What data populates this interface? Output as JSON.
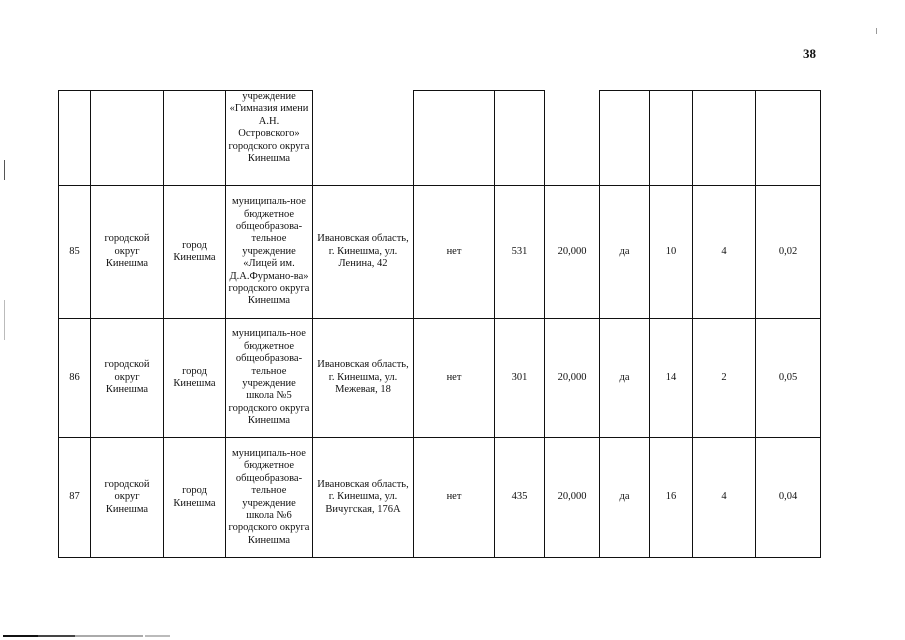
{
  "page_number": "38",
  "continuation_row": {
    "name": "учреждение «Гимназия имени А.Н. Островского» городского округа Кинешма"
  },
  "rows": [
    {
      "num": "85",
      "district": "городской округ Кинешма",
      "settlement": "город Кинешма",
      "name": "муниципаль-ное бюджетное общеобразова-тельное учреждение «Лицей им. Д.А.Фурмано-ва» городского округа Кинешма",
      "address": "Ивановская область, г. Кинешма, ул. Ленина, 42",
      "flag1": "нет",
      "count": "531",
      "value": "20,000",
      "flag2": "да",
      "n1": "10",
      "n2": "4",
      "ratio": "0,02"
    },
    {
      "num": "86",
      "district": "городской округ Кинешма",
      "settlement": "город Кинешма",
      "name": "муниципаль-ное бюджетное общеобразова-тельное учреждение школа №5 городского округа Кинешма",
      "address": "Ивановская область, г. Кинешма, ул. Межевая, 18",
      "flag1": "нет",
      "count": "301",
      "value": "20,000",
      "flag2": "да",
      "n1": "14",
      "n2": "2",
      "ratio": "0,05"
    },
    {
      "num": "87",
      "district": "городской округ Кинешма",
      "settlement": "город Кинешма",
      "name": "муниципаль-ное бюджетное общеобразова-тельное учреждение школа №6 городского округа Кинешма",
      "address": "Ивановская область, г. Кинешма, ул. Вичугская, 176А",
      "flag1": "нет",
      "count": "435",
      "value": "20,000",
      "flag2": "да",
      "n1": "16",
      "n2": "4",
      "ratio": "0,04"
    }
  ]
}
